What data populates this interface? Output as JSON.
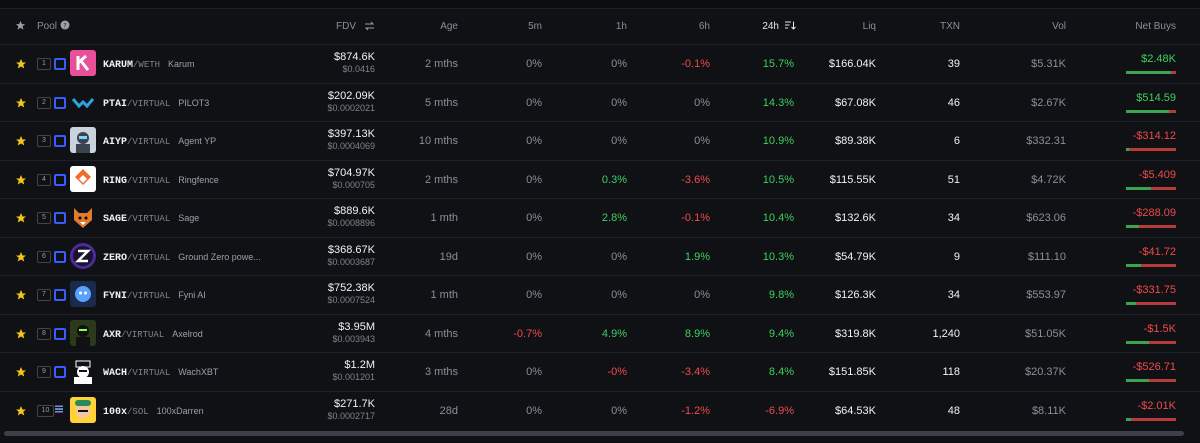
{
  "header": {
    "pool": "Pool",
    "fdv": "FDV",
    "age": "Age",
    "m5": "5m",
    "h1": "1h",
    "h6": "6h",
    "h24": "24h",
    "liq": "Liq",
    "txn": "TXN",
    "vol": "Vol",
    "net_buys": "Net Buys"
  },
  "rows": [
    {
      "rank": "1",
      "symbol": "KARUM",
      "quote": "/WETH",
      "name": "Karum",
      "fdv": "$874.6K",
      "price": "$0.0416",
      "age": "2 mths",
      "m5": "0%",
      "h1": "0%",
      "h6": "-0.1%",
      "h24": "15.7%",
      "liq": "$166.04K",
      "txn": "39",
      "vol": "$5.31K",
      "net": "$2.48K",
      "net_sign": "pos",
      "buy_fraction": 0.9
    },
    {
      "rank": "2",
      "symbol": "PTAI",
      "quote": "/VIRTUAL",
      "name": "PILOT3",
      "fdv": "$202.09K",
      "price": "$0.0002021",
      "age": "5 mths",
      "m5": "0%",
      "h1": "0%",
      "h6": "0%",
      "h24": "14.3%",
      "liq": "$67.08K",
      "txn": "46",
      "vol": "$2.67K",
      "net": "$514.59",
      "net_sign": "pos",
      "buy_fraction": 0.85
    },
    {
      "rank": "3",
      "symbol": "AIYP",
      "quote": "/VIRTUAL",
      "name": "Agent YP",
      "fdv": "$397.13K",
      "price": "$0.0004069",
      "age": "10 mths",
      "m5": "0%",
      "h1": "0%",
      "h6": "0%",
      "h24": "10.9%",
      "liq": "$89.38K",
      "txn": "6",
      "vol": "$332.31",
      "net": "-$314.12",
      "net_sign": "neg",
      "buy_fraction": 0.05
    },
    {
      "rank": "4",
      "symbol": "RING",
      "quote": "/VIRTUAL",
      "name": "Ringfence",
      "fdv": "$704.97K",
      "price": "$0.000705",
      "age": "2 mths",
      "m5": "0%",
      "h1": "0.3%",
      "h6": "-3.6%",
      "h24": "10.5%",
      "liq": "$115.55K",
      "txn": "51",
      "vol": "$4.72K",
      "net": "-$5.409",
      "net_sign": "neg",
      "buy_fraction": 0.5
    },
    {
      "rank": "5",
      "symbol": "SAGE",
      "quote": "/VIRTUAL",
      "name": "Sage",
      "fdv": "$889.6K",
      "price": "$0.0008896",
      "age": "1 mth",
      "m5": "0%",
      "h1": "2.8%",
      "h6": "-0.1%",
      "h24": "10.4%",
      "liq": "$132.6K",
      "txn": "34",
      "vol": "$623.06",
      "net": "-$288.09",
      "net_sign": "neg",
      "buy_fraction": 0.25
    },
    {
      "rank": "6",
      "symbol": "ZERO",
      "quote": "/VIRTUAL",
      "name": "Ground Zero powe...",
      "fdv": "$368.67K",
      "price": "$0.0003687",
      "age": "19d",
      "m5": "0%",
      "h1": "0%",
      "h6": "1.9%",
      "h24": "10.3%",
      "liq": "$54.79K",
      "txn": "9",
      "vol": "$111.10",
      "net": "-$41.72",
      "net_sign": "neg",
      "buy_fraction": 0.3
    },
    {
      "rank": "7",
      "symbol": "FYNI",
      "quote": "/VIRTUAL",
      "name": "Fyni AI",
      "fdv": "$752.38K",
      "price": "$0.0007524",
      "age": "1 mth",
      "m5": "0%",
      "h1": "0%",
      "h6": "0%",
      "h24": "9.8%",
      "liq": "$126.3K",
      "txn": "34",
      "vol": "$553.97",
      "net": "-$331.75",
      "net_sign": "neg",
      "buy_fraction": 0.2
    },
    {
      "rank": "8",
      "symbol": "AXR",
      "quote": "/VIRTUAL",
      "name": "Axelrod",
      "fdv": "$3.95M",
      "price": "$0.003943",
      "age": "4 mths",
      "m5": "-0.7%",
      "h1": "4.9%",
      "h6": "8.9%",
      "h24": "9.4%",
      "liq": "$319.8K",
      "txn": "1,240",
      "vol": "$51.05K",
      "net": "-$1.5K",
      "net_sign": "neg",
      "buy_fraction": 0.45
    },
    {
      "rank": "9",
      "symbol": "WACH",
      "quote": "/VIRTUAL",
      "name": "WachXBT",
      "fdv": "$1.2M",
      "price": "$0.001201",
      "age": "3 mths",
      "m5": "0%",
      "h1": "-0%",
      "h6": "-3.4%",
      "h24": "8.4%",
      "liq": "$151.85K",
      "txn": "118",
      "vol": "$20.37K",
      "net": "-$526.71",
      "net_sign": "neg",
      "buy_fraction": 0.45
    },
    {
      "rank": "10",
      "symbol": "100x",
      "quote": "/SOL",
      "name": "100xDarren",
      "fdv": "$271.7K",
      "price": "$0.0002717",
      "age": "28d",
      "m5": "0%",
      "h1": "0%",
      "h6": "-1.2%",
      "h24": "-6.9%",
      "liq": "$64.53K",
      "txn": "48",
      "vol": "$8.11K",
      "net": "-$2.01K",
      "net_sign": "neg",
      "buy_fraction": 0.1
    }
  ],
  "colors": {
    "pos": "#3ecf5e",
    "neg": "#f04a4a",
    "accent": "#3a5cff"
  }
}
